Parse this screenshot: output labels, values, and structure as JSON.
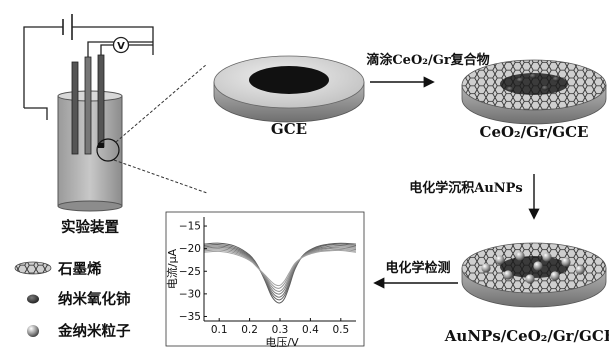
{
  "labels": {
    "setup": "实验装置",
    "gce": "GCE",
    "ceo2_gr_gce": "CeO₂/Gr/GCE",
    "aunps_electrode": "AuNPs/CeO₂/Gr/GCE",
    "step_coat": "滴涂CeO₂/Gr复合物",
    "step_deposit": "电化学沉积AuNPs",
    "step_detect": "电化学检测",
    "voltmeter": "V"
  },
  "legend": [
    {
      "name": "graphene",
      "label": "石墨烯"
    },
    {
      "name": "ceria",
      "label": "纳米氧化铈"
    },
    {
      "name": "gold",
      "label": "金纳米粒子"
    }
  ],
  "chart_data": {
    "type": "line",
    "xlabel": "电压/V",
    "ylabel": "电流/μA",
    "xlim": [
      0.05,
      0.55
    ],
    "ylim": [
      -36,
      -13
    ],
    "x_ticks": [
      0.1,
      0.2,
      0.3,
      0.4,
      0.5
    ],
    "y_ticks": [
      -15,
      -20,
      -25,
      -30,
      -35
    ],
    "x": [
      0.05,
      0.1,
      0.15,
      0.2,
      0.225,
      0.25,
      0.27,
      0.285,
      0.3,
      0.315,
      0.33,
      0.35,
      0.38,
      0.42,
      0.46,
      0.5,
      0.55
    ],
    "series": [
      {
        "values": [
          -19.0,
          -18.8,
          -19.4,
          -21.4,
          -23.6,
          -27.0,
          -30.2,
          -31.6,
          -32.0,
          -31.0,
          -28.4,
          -24.4,
          -21.2,
          -19.6,
          -19.0,
          -18.8,
          -19.0
        ]
      },
      {
        "values": [
          -19.3,
          -19.1,
          -19.7,
          -21.6,
          -23.7,
          -26.8,
          -29.7,
          -31.0,
          -31.3,
          -30.3,
          -27.9,
          -24.2,
          -21.2,
          -19.8,
          -19.2,
          -19.0,
          -19.3
        ]
      },
      {
        "values": [
          -19.6,
          -19.4,
          -20.0,
          -21.8,
          -23.8,
          -26.6,
          -29.2,
          -30.4,
          -30.7,
          -29.7,
          -27.4,
          -24.0,
          -21.3,
          -20.0,
          -19.5,
          -19.3,
          -19.6
        ]
      },
      {
        "values": [
          -19.9,
          -19.7,
          -20.3,
          -22.0,
          -23.9,
          -26.4,
          -28.7,
          -29.8,
          -30.0,
          -29.0,
          -26.9,
          -23.8,
          -21.4,
          -20.2,
          -19.8,
          -19.6,
          -19.9
        ]
      },
      {
        "values": [
          -20.2,
          -20.0,
          -20.6,
          -22.2,
          -24.0,
          -26.2,
          -28.2,
          -29.2,
          -29.4,
          -28.4,
          -26.4,
          -23.6,
          -21.5,
          -20.4,
          -20.0,
          -19.9,
          -20.2
        ]
      },
      {
        "values": [
          -20.5,
          -20.3,
          -20.9,
          -22.4,
          -24.1,
          -26.0,
          -27.7,
          -28.6,
          -28.7,
          -27.7,
          -25.9,
          -23.4,
          -21.6,
          -20.6,
          -20.3,
          -20.2,
          -20.5
        ]
      },
      {
        "values": [
          -20.8,
          -20.6,
          -21.2,
          -22.6,
          -24.1,
          -25.8,
          -27.2,
          -28.0,
          -28.1,
          -27.1,
          -25.4,
          -23.2,
          -21.7,
          -20.8,
          -20.5,
          -20.4,
          -20.8
        ]
      }
    ]
  }
}
